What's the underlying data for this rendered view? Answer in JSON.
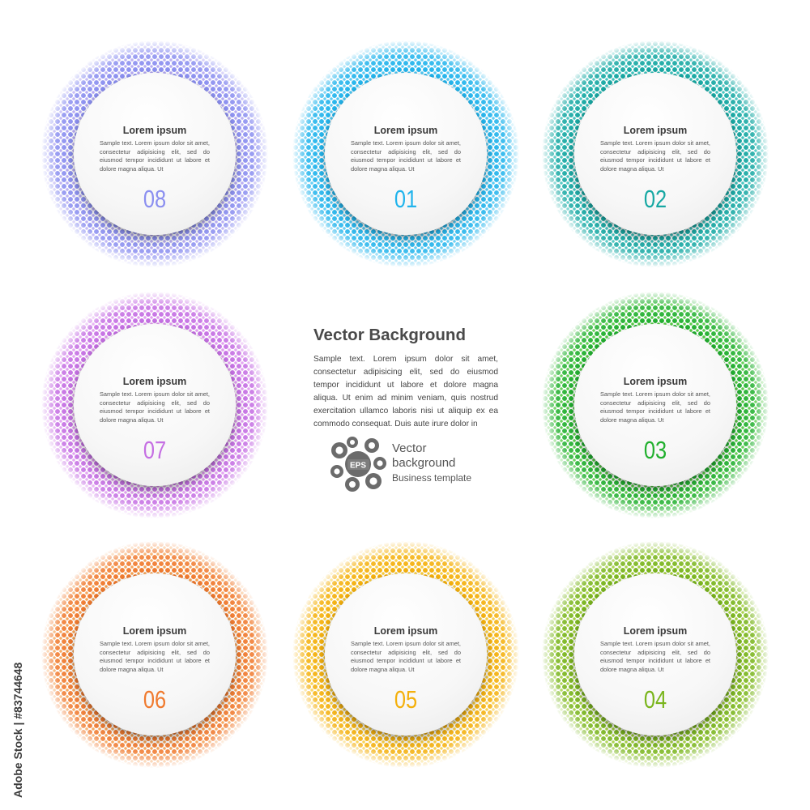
{
  "center": {
    "title": "Vector Background",
    "body": "Sample text. Lorem ipsum dolor sit amet, consectetur adipisicing elit, sed do eiusmod tempor incididunt ut labore et dolore magna aliqua. Ut enim ad minim veniam, quis nostrud exercitation ullamco laboris nisi ut aliquip ex ea commodo consequat. Duis aute irure dolor in"
  },
  "logo": {
    "badge": "EPS",
    "line1": "Vector",
    "line2": "background",
    "line3": "Business template",
    "icon": "eps-flower-icon"
  },
  "side_stamp": "Adobe Stock | #83744648",
  "cards": [
    {
      "title": "Lorem ipsum",
      "body": "Sample text. Lorem ipsum dolor sit amet, consectetur adipisicing elit, sed do eiusmod tempor incididunt ut labore et dolore magna aliqua. Ut",
      "number": "08",
      "color": "#8b8ff0",
      "color2": "#b3a8f2"
    },
    {
      "title": "Lorem ipsum",
      "body": "Sample text. Lorem ipsum dolor sit amet, consectetur adipisicing elit, sed do eiusmod tempor incididunt ut labore et dolore magna aliqua. Ut",
      "number": "01",
      "color": "#22b4ec",
      "color2": "#4fc8f3"
    },
    {
      "title": "Lorem ipsum",
      "body": "Sample text. Lorem ipsum dolor sit amet, consectetur adipisicing elit, sed do eiusmod tempor incididunt ut labore et dolore magna aliqua. Ut",
      "number": "02",
      "color": "#17a8a3",
      "color2": "#3cc2bd"
    },
    {
      "title": "Lorem ipsum",
      "body": "Sample text. Lorem ipsum dolor sit amet, consectetur adipisicing elit, sed do eiusmod tempor incididunt ut labore et dolore magna aliqua. Ut",
      "number": "07",
      "color": "#c56fe3",
      "color2": "#e09af0"
    },
    {
      "title": "Lorem ipsum",
      "body": "Sample text. Lorem ipsum dolor sit amet, consectetur adipisicing elit, sed do eiusmod tempor incididunt ut labore et dolore magna aliqua. Ut",
      "number": "03",
      "color": "#22b02f",
      "color2": "#55cc44"
    },
    {
      "title": "Lorem ipsum",
      "body": "Sample text. Lorem ipsum dolor sit amet, consectetur adipisicing elit, sed do eiusmod tempor incididunt ut labore et dolore magna aliqua. Ut",
      "number": "06",
      "color": "#f07a2e",
      "color2": "#f5a050"
    },
    {
      "title": "Lorem ipsum",
      "body": "Sample text. Lorem ipsum dolor sit amet, consectetur adipisicing elit, sed do eiusmod tempor incididunt ut labore et dolore magna aliqua. Ut",
      "number": "05",
      "color": "#f4b00c",
      "color2": "#f8cc3c"
    },
    {
      "title": "Lorem ipsum",
      "body": "Sample text. Lorem ipsum dolor sit amet, consectetur adipisicing elit, sed do eiusmod tempor incididunt ut labore et dolore magna aliqua. Ut",
      "number": "04",
      "color": "#7ab51d",
      "color2": "#a2cf3a"
    }
  ]
}
